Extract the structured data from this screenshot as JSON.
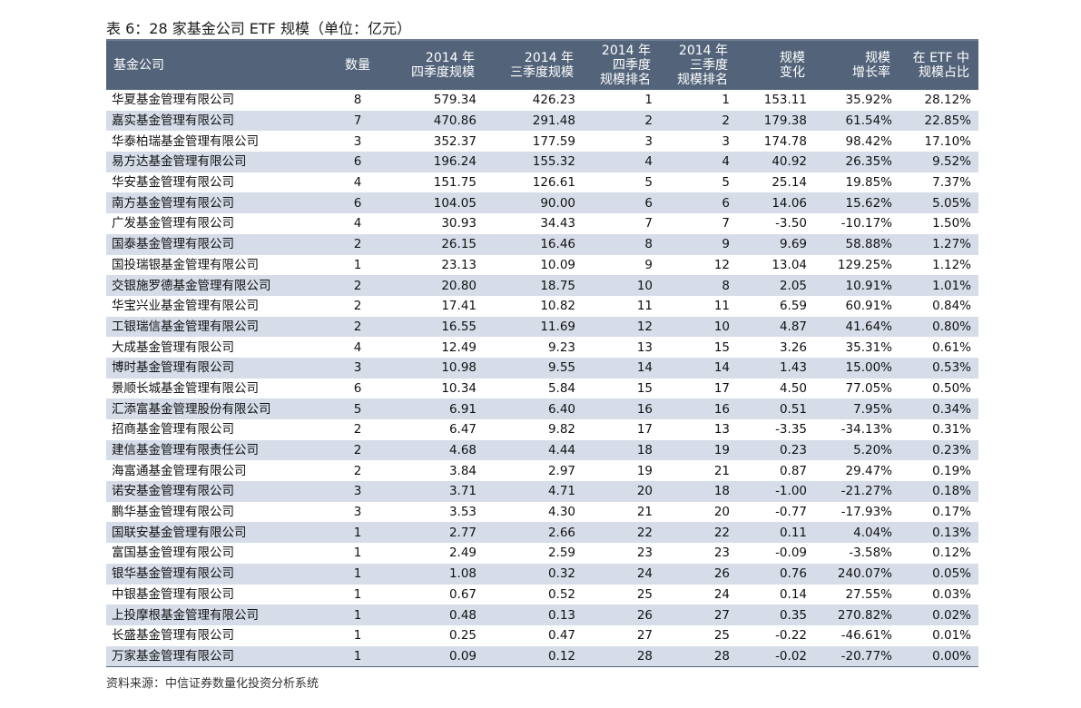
{
  "caption": "表 6：28 家基金公司 ETF 规模（单位：亿元）",
  "headers": {
    "company": "基金公司",
    "count": "数量",
    "q4": "2014 年\n四季度规模",
    "q3": "2014 年\n三季度规模",
    "q4rank": "2014 年\n四季度\n规模排名",
    "q3rank": "2014 年\n三季度\n规模排名",
    "change": "规模\n变化",
    "growth": "规模\n增长率",
    "share": "在 ETF 中\n规模占比"
  },
  "rows": [
    [
      "华夏基金管理有限公司",
      "8",
      "579.34",
      "426.23",
      "1",
      "1",
      "153.11",
      "35.92%",
      "28.12%"
    ],
    [
      "嘉实基金管理有限公司",
      "7",
      "470.86",
      "291.48",
      "2",
      "2",
      "179.38",
      "61.54%",
      "22.85%"
    ],
    [
      "华泰柏瑞基金管理有限公司",
      "3",
      "352.37",
      "177.59",
      "3",
      "3",
      "174.78",
      "98.42%",
      "17.10%"
    ],
    [
      "易方达基金管理有限公司",
      "6",
      "196.24",
      "155.32",
      "4",
      "4",
      "40.92",
      "26.35%",
      "9.52%"
    ],
    [
      "华安基金管理有限公司",
      "4",
      "151.75",
      "126.61",
      "5",
      "5",
      "25.14",
      "19.85%",
      "7.37%"
    ],
    [
      "南方基金管理有限公司",
      "6",
      "104.05",
      "90.00",
      "6",
      "6",
      "14.06",
      "15.62%",
      "5.05%"
    ],
    [
      "广发基金管理有限公司",
      "4",
      "30.93",
      "34.43",
      "7",
      "7",
      "-3.50",
      "-10.17%",
      "1.50%"
    ],
    [
      "国泰基金管理有限公司",
      "2",
      "26.15",
      "16.46",
      "8",
      "9",
      "9.69",
      "58.88%",
      "1.27%"
    ],
    [
      "国投瑞银基金管理有限公司",
      "1",
      "23.13",
      "10.09",
      "9",
      "12",
      "13.04",
      "129.25%",
      "1.12%"
    ],
    [
      "交银施罗德基金管理有限公司",
      "2",
      "20.80",
      "18.75",
      "10",
      "8",
      "2.05",
      "10.91%",
      "1.01%"
    ],
    [
      "华宝兴业基金管理有限公司",
      "2",
      "17.41",
      "10.82",
      "11",
      "11",
      "6.59",
      "60.91%",
      "0.84%"
    ],
    [
      "工银瑞信基金管理有限公司",
      "2",
      "16.55",
      "11.69",
      "12",
      "10",
      "4.87",
      "41.64%",
      "0.80%"
    ],
    [
      "大成基金管理有限公司",
      "4",
      "12.49",
      "9.23",
      "13",
      "15",
      "3.26",
      "35.31%",
      "0.61%"
    ],
    [
      "博时基金管理有限公司",
      "3",
      "10.98",
      "9.55",
      "14",
      "14",
      "1.43",
      "15.00%",
      "0.53%"
    ],
    [
      "景顺长城基金管理有限公司",
      "6",
      "10.34",
      "5.84",
      "15",
      "17",
      "4.50",
      "77.05%",
      "0.50%"
    ],
    [
      "汇添富基金管理股份有限公司",
      "5",
      "6.91",
      "6.40",
      "16",
      "16",
      "0.51",
      "7.95%",
      "0.34%"
    ],
    [
      "招商基金管理有限公司",
      "2",
      "6.47",
      "9.82",
      "17",
      "13",
      "-3.35",
      "-34.13%",
      "0.31%"
    ],
    [
      "建信基金管理有限责任公司",
      "2",
      "4.68",
      "4.44",
      "18",
      "19",
      "0.23",
      "5.20%",
      "0.23%"
    ],
    [
      "海富通基金管理有限公司",
      "2",
      "3.84",
      "2.97",
      "19",
      "21",
      "0.87",
      "29.47%",
      "0.19%"
    ],
    [
      "诺安基金管理有限公司",
      "3",
      "3.71",
      "4.71",
      "20",
      "18",
      "-1.00",
      "-21.27%",
      "0.18%"
    ],
    [
      "鹏华基金管理有限公司",
      "3",
      "3.53",
      "4.30",
      "21",
      "20",
      "-0.77",
      "-17.93%",
      "0.17%"
    ],
    [
      "国联安基金管理有限公司",
      "1",
      "2.77",
      "2.66",
      "22",
      "22",
      "0.11",
      "4.04%",
      "0.13%"
    ],
    [
      "富国基金管理有限公司",
      "1",
      "2.49",
      "2.59",
      "23",
      "23",
      "-0.09",
      "-3.58%",
      "0.12%"
    ],
    [
      "银华基金管理有限公司",
      "1",
      "1.08",
      "0.32",
      "24",
      "26",
      "0.76",
      "240.07%",
      "0.05%"
    ],
    [
      "中银基金管理有限公司",
      "1",
      "0.67",
      "0.52",
      "25",
      "24",
      "0.14",
      "27.55%",
      "0.03%"
    ],
    [
      "上投摩根基金管理有限公司",
      "1",
      "0.48",
      "0.13",
      "26",
      "27",
      "0.35",
      "270.82%",
      "0.02%"
    ],
    [
      "长盛基金管理有限公司",
      "1",
      "0.25",
      "0.47",
      "27",
      "25",
      "-0.22",
      "-46.61%",
      "0.01%"
    ],
    [
      "万家基金管理有限公司",
      "1",
      "0.09",
      "0.12",
      "28",
      "28",
      "-0.02",
      "-20.77%",
      "0.00%"
    ]
  ],
  "source": "资料来源：中信证券数量化投资分析系统",
  "colors": {
    "header_bg": "#53647a",
    "stripe": "#d6dde9"
  }
}
